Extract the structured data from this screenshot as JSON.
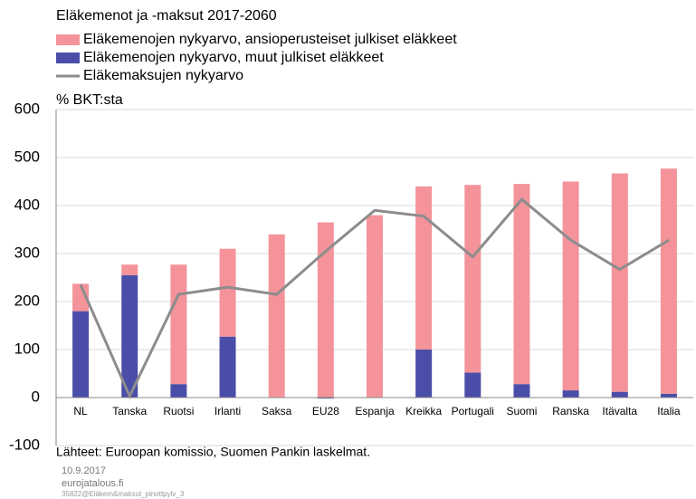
{
  "chart_data": {
    "type": "bar",
    "stacked": true,
    "title": "Eläkemenot ja -maksut 2017-2060",
    "y_axis_label": "% BKT:sta",
    "categories": [
      "NL",
      "Tanska",
      "Ruotsi",
      "Irlanti",
      "Saksa",
      "EU28",
      "Espanja",
      "Kreikka",
      "Portugali",
      "Suomi",
      "Ranska",
      "Itävalta",
      "Italia"
    ],
    "series": [
      {
        "name": "Eläkemenojen nykyarvo, ansioperusteiset julkiset eläkkeet",
        "color": "#f4939a",
        "type": "bar",
        "values": [
          57,
          22,
          249,
          183,
          340,
          365,
          380,
          340,
          391,
          417,
          435,
          455,
          469
        ]
      },
      {
        "name": "Eläkemenojen nykyarvo, muut julkiset eläkkeet",
        "color": "#4b4ea8",
        "type": "bar",
        "values": [
          180,
          255,
          28,
          127,
          0,
          -2,
          0,
          100,
          52,
          28,
          15,
          12,
          8
        ]
      },
      {
        "name": "Eläkemaksujen nykyarvo",
        "color": "#8c8c8c",
        "type": "line",
        "values": [
          235,
          3,
          215,
          230,
          215,
          305,
          390,
          378,
          293,
          413,
          328,
          267,
          328
        ]
      }
    ],
    "ylim": [
      -100,
      600
    ],
    "yticks": [
      -100,
      0,
      100,
      200,
      300,
      400,
      500,
      600
    ],
    "grid": true,
    "source": "Lähteet: Euroopan komissio, Suomen Pankin laskelmat.",
    "date": "10.9.2017",
    "site": "eurojatalous.fi",
    "code": "35822@Eläkem&maksut_pinottpylv_3"
  }
}
